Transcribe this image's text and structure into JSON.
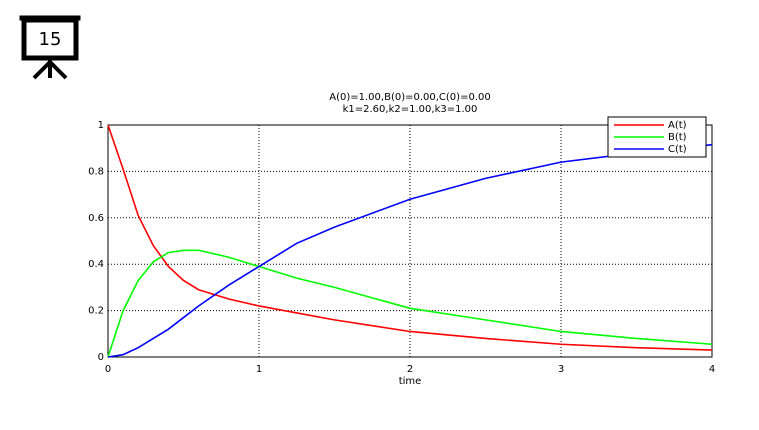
{
  "badge": "15",
  "chart_data": {
    "type": "line",
    "title": [
      "A(0)=1.00,B(0)=0.00,C(0)=0.00",
      "k1=2.60,k2=1.00,k3=1.00"
    ],
    "x_label": "time",
    "x": [
      0,
      0.1,
      0.2,
      0.3,
      0.4,
      0.5,
      0.6,
      0.8,
      1.0,
      1.25,
      1.5,
      2,
      2.5,
      3,
      3.5,
      4
    ],
    "series": [
      {
        "name": "A(t)",
        "color": "#ff0000",
        "values": [
          1.0,
          0.81,
          0.61,
          0.48,
          0.39,
          0.33,
          0.29,
          0.25,
          0.22,
          0.19,
          0.16,
          0.11,
          0.08,
          0.055,
          0.04,
          0.03
        ]
      },
      {
        "name": "B(t)",
        "color": "#00ff00",
        "values": [
          0,
          0.2,
          0.33,
          0.41,
          0.45,
          0.46,
          0.46,
          0.43,
          0.39,
          0.34,
          0.3,
          0.21,
          0.16,
          0.11,
          0.08,
          0.055
        ]
      },
      {
        "name": "C(t)",
        "color": "#0000ff",
        "values": [
          0,
          0.01,
          0.04,
          0.08,
          0.12,
          0.17,
          0.22,
          0.31,
          0.39,
          0.49,
          0.56,
          0.68,
          0.77,
          0.84,
          0.88,
          0.915
        ]
      }
    ],
    "xlim": [
      0,
      4
    ],
    "xticks": [
      0,
      1,
      2,
      3,
      4
    ],
    "ylim": [
      0,
      1
    ],
    "yticks": [
      0,
      0.2,
      0.4,
      0.6,
      0.8,
      1
    ],
    "grid": true,
    "legend": "upper right"
  }
}
